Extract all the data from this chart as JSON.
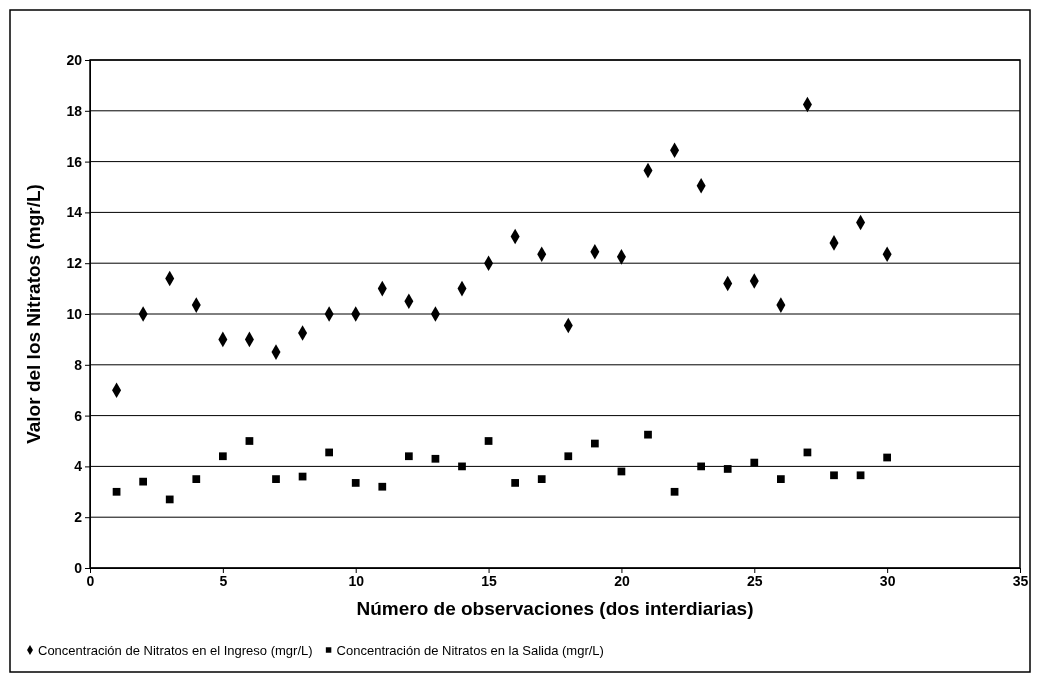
{
  "chart_data": {
    "type": "scatter",
    "xlabel": "Número de observaciones (dos interdiarias)",
    "ylabel": "Valor del los Nitratos (mgr/L)",
    "x": [
      1,
      2,
      3,
      4,
      5,
      6,
      7,
      8,
      9,
      10,
      11,
      12,
      13,
      14,
      15,
      16,
      17,
      18,
      19,
      20,
      21,
      22,
      23,
      24,
      25,
      26,
      27,
      28,
      29,
      30
    ],
    "series": [
      {
        "name": "Concentración de Nitratos en el Ingreso (mgr/L)",
        "color": "#000000",
        "marker": "diamond",
        "values": [
          7.0,
          10.0,
          11.4,
          10.35,
          9.0,
          9.0,
          8.5,
          9.25,
          10.0,
          10.0,
          11.0,
          10.5,
          10.0,
          11.0,
          12.0,
          13.05,
          12.35,
          9.55,
          12.45,
          12.25,
          15.65,
          16.45,
          15.05,
          11.2,
          11.3,
          10.35,
          18.25,
          12.8,
          13.6,
          12.35
        ]
      },
      {
        "name": "Concentración de Nitratos en la Salida (mgr/L)",
        "color": "#000000",
        "marker": "square",
        "values": [
          3.0,
          3.4,
          2.7,
          3.5,
          4.4,
          5.0,
          3.5,
          3.6,
          4.55,
          3.35,
          3.2,
          4.4,
          4.3,
          4.0,
          5.0,
          3.35,
          3.5,
          4.4,
          4.9,
          3.8,
          5.25,
          3.0,
          4.0,
          3.9,
          4.15,
          3.5,
          4.55,
          3.65,
          3.65,
          4.35
        ]
      }
    ],
    "xlim": [
      0,
      35
    ],
    "xticks": [
      0,
      5,
      10,
      15,
      20,
      25,
      30,
      35
    ],
    "ylim": [
      0,
      20
    ],
    "yticks": [
      0,
      2,
      4,
      6,
      8,
      10,
      12,
      14,
      16,
      18,
      20
    ],
    "grid": "y",
    "legend": "bottom"
  }
}
